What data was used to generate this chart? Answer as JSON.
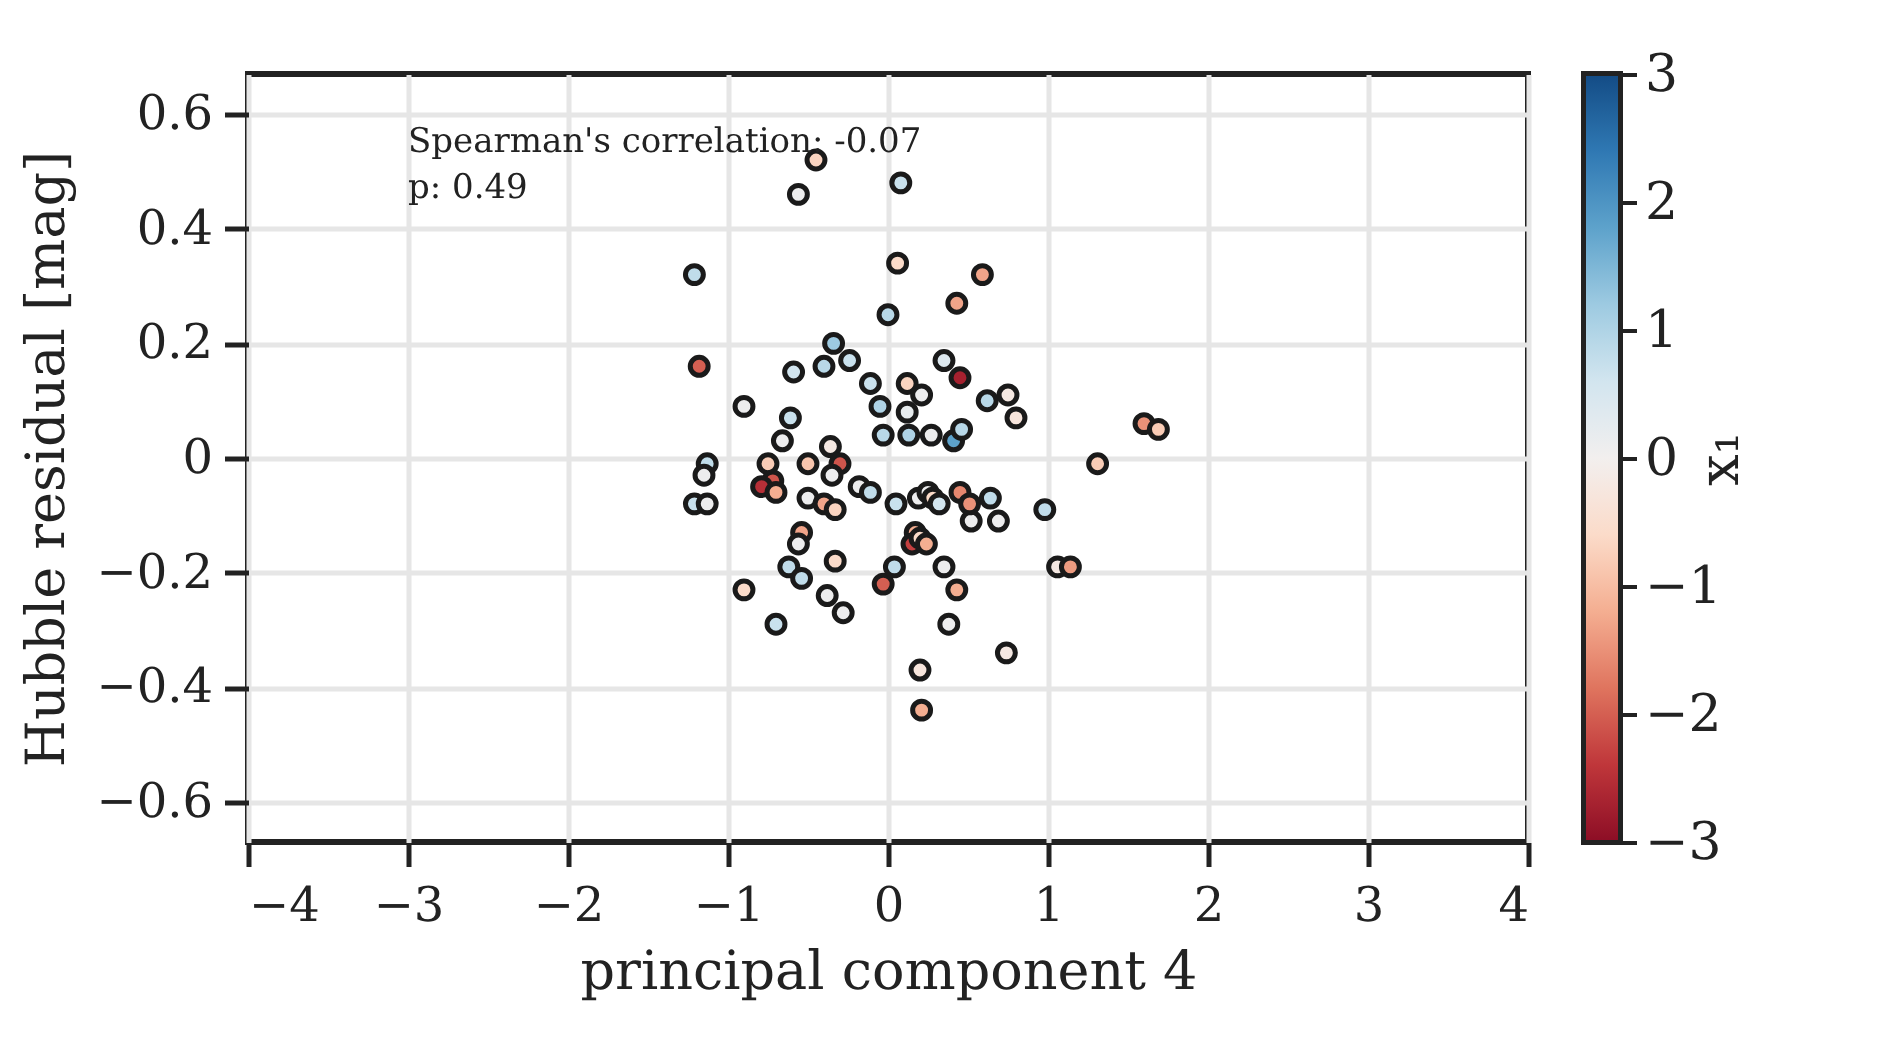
{
  "chart_data": {
    "type": "scatter",
    "xlabel": "principal component 4",
    "ylabel": "Hubble residual [mag]",
    "clabel": "x₁",
    "annotations": [
      "Spearman's correlation: -0.07",
      "p: 0.49"
    ],
    "xlim": [
      -4,
      4
    ],
    "xticks": [
      -4,
      -3,
      -2,
      -1,
      0,
      1,
      2,
      3,
      4
    ],
    "ylim": [
      -0.67,
      0.67
    ],
    "yticks": [
      -0.6,
      -0.4,
      -0.2,
      0.0,
      0.2,
      0.4,
      0.6
    ],
    "clim": [
      -3,
      3
    ],
    "cticks": [
      -3,
      -2,
      -1,
      0,
      1,
      2,
      3
    ],
    "grid": true,
    "marker": "circle",
    "x": [
      -0.45,
      -0.56,
      0.08,
      -1.21,
      0.06,
      0.59,
      0.43,
      0,
      -1.18,
      -0.34,
      -0.59,
      -0.4,
      -0.24,
      0.35,
      0.45,
      -0.9,
      -0.11,
      -0.05,
      0.12,
      0.21,
      0.12,
      0.62,
      0.75,
      0.8,
      -0.61,
      -0.66,
      -0.36,
      -0.03,
      0.13,
      0.41,
      0.46,
      -1.13,
      -1.15,
      -0.75,
      -0.72,
      -0.79,
      -0.3,
      -0.5,
      -0.35,
      -0.7,
      -1.21,
      -1.13,
      -0.5,
      -0.4,
      -0.33,
      -0.18,
      -0.11,
      0.05,
      0.19,
      0.25,
      0.28,
      0.32,
      0.45,
      0.64,
      0.98,
      0.52,
      0.69,
      -0.54,
      -0.56,
      -0.33,
      -0.62,
      -0.54,
      -0.9,
      -0.38,
      -0.28,
      -0.7,
      -0.03,
      0.04,
      0.17,
      0.15,
      0.2,
      0.24,
      0.35,
      0.43,
      0.38,
      0.2,
      0.21,
      0.74,
      1.31,
      1.6,
      1.69,
      1.06,
      1.14,
      0.51,
      0.27
    ],
    "values": [
      0.52,
      0.46,
      0.48,
      0.32,
      0.34,
      0.32,
      0.27,
      0.25,
      0.16,
      0.2,
      0.15,
      0.16,
      0.17,
      0.17,
      0.14,
      0.09,
      0.13,
      0.09,
      0.13,
      0.11,
      0.08,
      0.1,
      0.11,
      0.07,
      0.07,
      0.03,
      0.02,
      0.04,
      0.04,
      0.03,
      0.05,
      -0.01,
      -0.03,
      -0.01,
      -0.04,
      -0.05,
      -0.01,
      -0.01,
      -0.03,
      -0.06,
      -0.08,
      -0.08,
      -0.07,
      -0.08,
      -0.09,
      -0.05,
      -0.06,
      -0.08,
      -0.07,
      -0.06,
      -0.07,
      -0.08,
      -0.06,
      -0.07,
      -0.09,
      -0.11,
      -0.11,
      -0.13,
      -0.15,
      -0.18,
      -0.19,
      -0.21,
      -0.23,
      -0.24,
      -0.27,
      -0.29,
      -0.22,
      -0.19,
      -0.13,
      -0.15,
      -0.14,
      -0.15,
      -0.19,
      -0.23,
      -0.29,
      -0.37,
      -0.44,
      -0.34,
      -0.01,
      0.06,
      0.05,
      -0.19,
      -0.19,
      -0.08,
      0.04
    ],
    "cvalues": [
      -0.7,
      0.1,
      0.7,
      0.8,
      -0.6,
      -1.3,
      -1.3,
      0.9,
      -2.0,
      1.2,
      0.6,
      0.9,
      0.7,
      0.4,
      -2.7,
      0.1,
      0.7,
      1.0,
      -0.7,
      0.1,
      0.2,
      0.9,
      -0.2,
      -0.3,
      0.7,
      0.1,
      -0.2,
      0.9,
      1.0,
      1.8,
      0.9,
      0.8,
      0.1,
      -0.8,
      -2.1,
      -2.5,
      -2.1,
      -0.9,
      0.1,
      -1.2,
      0.7,
      0.1,
      0.1,
      -1.3,
      -0.7,
      0.1,
      0.8,
      0.7,
      0.1,
      0.1,
      -0.6,
      0.6,
      -1.6,
      0.8,
      0.8,
      0.1,
      0.1,
      -1.3,
      0.1,
      -0.6,
      0.8,
      0.8,
      -0.6,
      0.1,
      0.1,
      0.7,
      -2.0,
      0.8,
      -1.2,
      -2.3,
      -0.6,
      -1.2,
      0.1,
      -1.2,
      0.1,
      -0.3,
      -1.2,
      -0.2,
      -0.8,
      -1.5,
      -0.8,
      -0.2,
      -1.4,
      -1.5,
      0.1
    ]
  }
}
